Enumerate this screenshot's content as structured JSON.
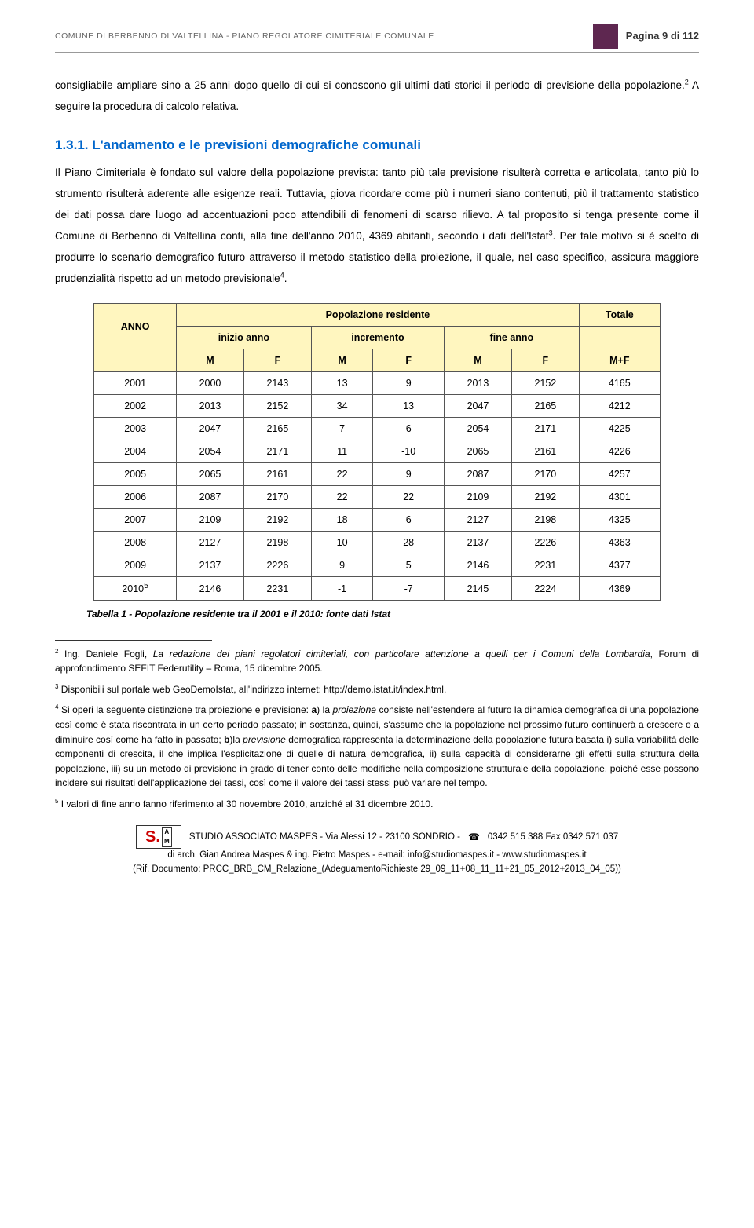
{
  "header": {
    "left": "COMUNE  DI  BERBENNO DI VALTELLINA - PIANO REGOLATORE CIMITERIALE COMUNALE",
    "right": "Pagina 9 di 112"
  },
  "para1": "consigliabile ampliare sino a 25 anni dopo quello di cui si conoscono gli ultimi dati storici il periodo di previsione della popolazione.",
  "para1_sup": "2",
  "para1_tail": " A seguire la procedura di calcolo relativa.",
  "section_title": "1.3.1. L'andamento e le previsioni demografiche comunali",
  "para2": "Il Piano Cimiteriale è fondato sul valore della popolazione prevista: tanto più tale previsione risulterà corretta e articolata, tanto più lo strumento risulterà aderente alle esigenze reali. Tuttavia, giova ricordare come più i numeri siano contenuti, più il trattamento statistico dei dati possa dare luogo ad accentuazioni poco attendibili di fenomeni di scarso rilievo. A tal proposito si tenga presente come il Comune di Berbenno di Valtellina conti, alla fine dell'anno 2010, 4369 abitanti, secondo i dati dell'Istat",
  "para2_sup": "3",
  "para2_tail": ". Per tale motivo si è scelto di produrre lo scenario demografico futuro attraverso il metodo statistico della proiezione, il quale, nel caso specifico, assicura maggiore prudenzialità rispetto ad un metodo previsionale",
  "para2_sup2": "4",
  "para2_end": ".",
  "table": {
    "head_group1": "Popolazione residente",
    "head_totale": "Totale",
    "head_anno": "ANNO",
    "head_inizio": "inizio anno",
    "head_incr": "incremento",
    "head_fine": "fine anno",
    "cols": [
      "M",
      "F",
      "M",
      "F",
      "M",
      "F",
      "M+F"
    ],
    "rows": [
      [
        "2001",
        "2000",
        "2143",
        "13",
        "9",
        "2013",
        "2152",
        "4165"
      ],
      [
        "2002",
        "2013",
        "2152",
        "34",
        "13",
        "2047",
        "2165",
        "4212"
      ],
      [
        "2003",
        "2047",
        "2165",
        "7",
        "6",
        "2054",
        "2171",
        "4225"
      ],
      [
        "2004",
        "2054",
        "2171",
        "11",
        "-10",
        "2065",
        "2161",
        "4226"
      ],
      [
        "2005",
        "2065",
        "2161",
        "22",
        "9",
        "2087",
        "2170",
        "4257"
      ],
      [
        "2006",
        "2087",
        "2170",
        "22",
        "22",
        "2109",
        "2192",
        "4301"
      ],
      [
        "2007",
        "2109",
        "2192",
        "18",
        "6",
        "2127",
        "2198",
        "4325"
      ],
      [
        "2008",
        "2127",
        "2198",
        "10",
        "28",
        "2137",
        "2226",
        "4363"
      ],
      [
        "2009",
        "2137",
        "2226",
        "9",
        "5",
        "2146",
        "2231",
        "4377"
      ]
    ],
    "lastrow_year": "2010",
    "lastrow_sup": "5",
    "lastrow_rest": [
      "2146",
      "2231",
      "-1",
      "-7",
      "2145",
      "2224",
      "4369"
    ]
  },
  "table_caption": "Tabella 1 - Popolazione residente tra il 2001 e il 2010: fonte dati Istat",
  "footnotes": {
    "fn2_sup": "2",
    "fn2_a": " Ing. Daniele Fogli, ",
    "fn2_i": "La redazione dei piani regolatori cimiteriali, con particolare attenzione a quelli per i Comuni della Lombardia",
    "fn2_b": ", Forum di approfondimento SEFIT Federutility – Roma, 15 dicembre 2005.",
    "fn3_sup": "3",
    "fn3": " Disponibili sul portale web GeoDemoIstat, all'indirizzo internet: http://demo.istat.it/index.html.",
    "fn4_sup": "4",
    "fn4_a": " Si operi la seguente distinzione tra proiezione e previsione: ",
    "fn4_b1": "a",
    "fn4_c": ") la ",
    "fn4_i1": "proiezione",
    "fn4_d": " consiste nell'estendere al futuro la dinamica demografica di una popolazione così come è stata riscontrata in un certo periodo passato; in sostanza, quindi, s'assume che la popolazione nel prossimo futuro continuerà a crescere o a diminuire così come ha fatto in passato; ",
    "fn4_b2": "b",
    "fn4_e": ")la ",
    "fn4_i2": "previsione",
    "fn4_f": " demografica rappresenta la determinazione della popolazione futura basata i) sulla variabilità delle componenti di crescita, il che implica l'esplicitazione di quelle di natura demografica, ii) sulla capacità di considerarne gli effetti sulla struttura della popolazione, iii) su un metodo di previsione in grado di tener conto delle modifiche nella composizione strutturale della popolazione, poiché esse possono incidere sui risultati dell'applicazione dei tassi, così come il valore dei tassi stessi può variare nel tempo.",
    "fn5_sup": "5",
    "fn5": " I valori di fine anno fanno riferimento al 30 novembre 2010, anziché al 31 dicembre 2010."
  },
  "footer": {
    "line1_a": "STUDIO ASSOCIATO MASPES - Via Alessi 12 - 23100 SONDRIO - ",
    "line1_b": " 0342 515 388    Fax  0342 571 037",
    "line2": "di arch. Gian Andrea Maspes & ing. Pietro Maspes - e-mail: info@studiomaspes.it - www.studiomaspes.it",
    "line3": "(Rif. Documento: PRCC_BRB_CM_Relazione_(AdeguamentoRichieste 29_09_11+08_11_11+21_05_2012+2013_04_05))"
  }
}
